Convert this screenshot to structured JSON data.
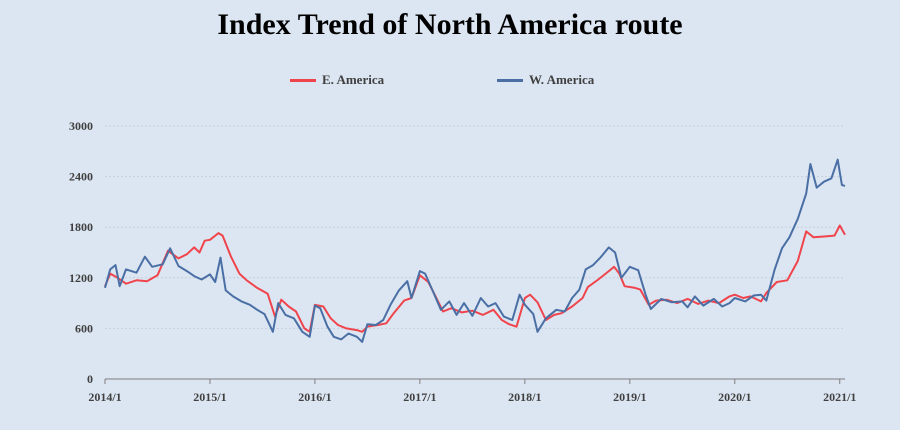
{
  "chart_data": {
    "type": "line",
    "title": "Index Trend of North America route",
    "ylim": [
      0,
      3000
    ],
    "yticks": [
      0,
      600,
      1200,
      1800,
      2400,
      3000
    ],
    "xticks": [
      "2014/1",
      "2015/1",
      "2016/1",
      "2017/1",
      "2018/1",
      "2019/1",
      "2020/1",
      "2021/1"
    ],
    "xrange": [
      2014.0,
      2021.05
    ],
    "grid": true,
    "legend_position": "top-center",
    "series": [
      {
        "name": "E. America",
        "color": "#f0444c",
        "points": [
          [
            2014.0,
            1100
          ],
          [
            2014.05,
            1250
          ],
          [
            2014.12,
            1200
          ],
          [
            2014.2,
            1130
          ],
          [
            2014.3,
            1170
          ],
          [
            2014.4,
            1160
          ],
          [
            2014.5,
            1230
          ],
          [
            2014.6,
            1520
          ],
          [
            2014.7,
            1430
          ],
          [
            2014.78,
            1480
          ],
          [
            2014.85,
            1560
          ],
          [
            2014.9,
            1500
          ],
          [
            2014.95,
            1640
          ],
          [
            2015.0,
            1650
          ],
          [
            2015.08,
            1730
          ],
          [
            2015.12,
            1700
          ],
          [
            2015.2,
            1450
          ],
          [
            2015.28,
            1250
          ],
          [
            2015.35,
            1170
          ],
          [
            2015.45,
            1080
          ],
          [
            2015.55,
            1010
          ],
          [
            2015.62,
            740
          ],
          [
            2015.68,
            940
          ],
          [
            2015.75,
            860
          ],
          [
            2015.82,
            800
          ],
          [
            2015.9,
            600
          ],
          [
            2015.95,
            560
          ],
          [
            2016.0,
            880
          ],
          [
            2016.08,
            860
          ],
          [
            2016.15,
            720
          ],
          [
            2016.22,
            640
          ],
          [
            2016.3,
            600
          ],
          [
            2016.4,
            580
          ],
          [
            2016.45,
            560
          ],
          [
            2016.5,
            620
          ],
          [
            2016.6,
            640
          ],
          [
            2016.68,
            660
          ],
          [
            2016.75,
            780
          ],
          [
            2016.85,
            930
          ],
          [
            2016.92,
            960
          ],
          [
            2017.0,
            1230
          ],
          [
            2017.08,
            1150
          ],
          [
            2017.15,
            980
          ],
          [
            2017.22,
            800
          ],
          [
            2017.3,
            840
          ],
          [
            2017.4,
            790
          ],
          [
            2017.5,
            810
          ],
          [
            2017.6,
            760
          ],
          [
            2017.7,
            820
          ],
          [
            2017.78,
            700
          ],
          [
            2017.85,
            650
          ],
          [
            2017.92,
            620
          ],
          [
            2018.0,
            960
          ],
          [
            2018.05,
            1000
          ],
          [
            2018.12,
            910
          ],
          [
            2018.2,
            700
          ],
          [
            2018.28,
            760
          ],
          [
            2018.35,
            780
          ],
          [
            2018.45,
            860
          ],
          [
            2018.55,
            960
          ],
          [
            2018.6,
            1090
          ],
          [
            2018.7,
            1180
          ],
          [
            2018.8,
            1280
          ],
          [
            2018.85,
            1330
          ],
          [
            2018.9,
            1250
          ],
          [
            2018.95,
            1100
          ],
          [
            2019.05,
            1080
          ],
          [
            2019.1,
            1060
          ],
          [
            2019.18,
            880
          ],
          [
            2019.25,
            930
          ],
          [
            2019.35,
            940
          ],
          [
            2019.45,
            900
          ],
          [
            2019.55,
            950
          ],
          [
            2019.65,
            890
          ],
          [
            2019.75,
            930
          ],
          [
            2019.85,
            900
          ],
          [
            2019.95,
            980
          ],
          [
            2020.0,
            1000
          ],
          [
            2020.08,
            960
          ],
          [
            2020.15,
            980
          ],
          [
            2020.25,
            920
          ],
          [
            2020.3,
            1020
          ],
          [
            2020.4,
            1150
          ],
          [
            2020.5,
            1170
          ],
          [
            2020.6,
            1400
          ],
          [
            2020.68,
            1750
          ],
          [
            2020.75,
            1680
          ],
          [
            2020.85,
            1690
          ],
          [
            2020.95,
            1700
          ],
          [
            2021.0,
            1820
          ],
          [
            2021.05,
            1710
          ]
        ]
      },
      {
        "name": "W. America",
        "color": "#4a6fa5",
        "points": [
          [
            2014.0,
            1080
          ],
          [
            2014.05,
            1300
          ],
          [
            2014.1,
            1350
          ],
          [
            2014.14,
            1100
          ],
          [
            2014.2,
            1300
          ],
          [
            2014.3,
            1260
          ],
          [
            2014.38,
            1450
          ],
          [
            2014.45,
            1330
          ],
          [
            2014.55,
            1360
          ],
          [
            2014.62,
            1550
          ],
          [
            2014.7,
            1340
          ],
          [
            2014.78,
            1280
          ],
          [
            2014.85,
            1220
          ],
          [
            2014.92,
            1180
          ],
          [
            2015.0,
            1240
          ],
          [
            2015.05,
            1150
          ],
          [
            2015.1,
            1440
          ],
          [
            2015.15,
            1050
          ],
          [
            2015.22,
            980
          ],
          [
            2015.3,
            920
          ],
          [
            2015.38,
            880
          ],
          [
            2015.45,
            820
          ],
          [
            2015.52,
            770
          ],
          [
            2015.6,
            560
          ],
          [
            2015.65,
            900
          ],
          [
            2015.72,
            760
          ],
          [
            2015.8,
            720
          ],
          [
            2015.88,
            560
          ],
          [
            2015.95,
            500
          ],
          [
            2016.0,
            870
          ],
          [
            2016.05,
            840
          ],
          [
            2016.12,
            620
          ],
          [
            2016.18,
            500
          ],
          [
            2016.25,
            470
          ],
          [
            2016.32,
            540
          ],
          [
            2016.4,
            500
          ],
          [
            2016.45,
            440
          ],
          [
            2016.5,
            650
          ],
          [
            2016.58,
            640
          ],
          [
            2016.65,
            700
          ],
          [
            2016.72,
            880
          ],
          [
            2016.8,
            1050
          ],
          [
            2016.88,
            1160
          ],
          [
            2016.92,
            960
          ],
          [
            2017.0,
            1280
          ],
          [
            2017.05,
            1250
          ],
          [
            2017.12,
            1050
          ],
          [
            2017.2,
            820
          ],
          [
            2017.28,
            920
          ],
          [
            2017.35,
            760
          ],
          [
            2017.42,
            900
          ],
          [
            2017.5,
            750
          ],
          [
            2017.58,
            960
          ],
          [
            2017.65,
            860
          ],
          [
            2017.72,
            900
          ],
          [
            2017.8,
            740
          ],
          [
            2017.88,
            700
          ],
          [
            2017.95,
            1000
          ],
          [
            2018.0,
            880
          ],
          [
            2018.08,
            770
          ],
          [
            2018.12,
            560
          ],
          [
            2018.2,
            720
          ],
          [
            2018.3,
            820
          ],
          [
            2018.38,
            800
          ],
          [
            2018.45,
            960
          ],
          [
            2018.52,
            1060
          ],
          [
            2018.58,
            1300
          ],
          [
            2018.65,
            1350
          ],
          [
            2018.72,
            1440
          ],
          [
            2018.8,
            1560
          ],
          [
            2018.86,
            1500
          ],
          [
            2018.92,
            1200
          ],
          [
            2019.0,
            1330
          ],
          [
            2019.08,
            1290
          ],
          [
            2019.15,
            1000
          ],
          [
            2019.2,
            830
          ],
          [
            2019.3,
            950
          ],
          [
            2019.4,
            910
          ],
          [
            2019.5,
            920
          ],
          [
            2019.55,
            850
          ],
          [
            2019.62,
            980
          ],
          [
            2019.7,
            870
          ],
          [
            2019.8,
            950
          ],
          [
            2019.88,
            860
          ],
          [
            2019.95,
            900
          ],
          [
            2020.0,
            960
          ],
          [
            2020.1,
            920
          ],
          [
            2020.18,
            990
          ],
          [
            2020.25,
            1000
          ],
          [
            2020.3,
            930
          ],
          [
            2020.38,
            1300
          ],
          [
            2020.45,
            1550
          ],
          [
            2020.52,
            1680
          ],
          [
            2020.6,
            1900
          ],
          [
            2020.68,
            2200
          ],
          [
            2020.72,
            2550
          ],
          [
            2020.78,
            2270
          ],
          [
            2020.85,
            2340
          ],
          [
            2020.92,
            2380
          ],
          [
            2020.98,
            2600
          ],
          [
            2021.02,
            2300
          ],
          [
            2021.05,
            2290
          ]
        ]
      }
    ]
  }
}
